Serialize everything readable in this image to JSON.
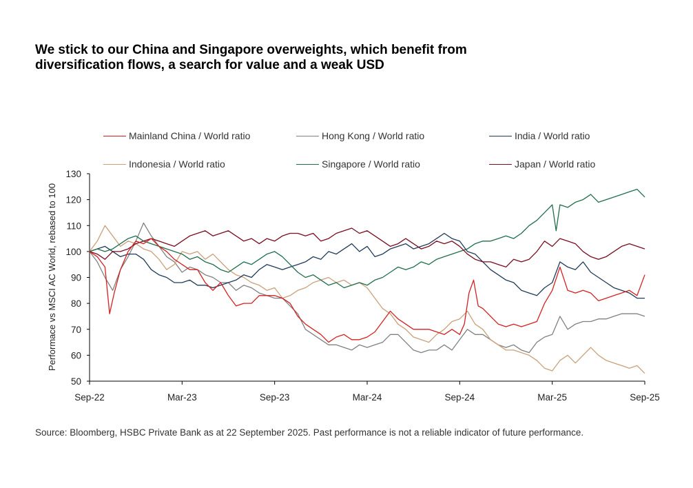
{
  "title_lines": [
    "We stick to our China and Singapore overweights, which benefit from",
    "diversification flows, a search for value and a weak USD"
  ],
  "source": "Source: Bloomberg, HSBC Private Bank as at 22 September 2025. Past performance is not a reliable indicator of future performance.",
  "chart_data": {
    "type": "line",
    "ylabel": "Performace vs MSCI AC World, rebased to 100",
    "ylim": [
      50,
      130
    ],
    "yticks": [
      50,
      60,
      70,
      80,
      90,
      100,
      110,
      120,
      130
    ],
    "xlim": [
      0,
      36
    ],
    "xticks": [
      {
        "x": 0,
        "label": "Sep-22"
      },
      {
        "x": 6,
        "label": "Mar-23"
      },
      {
        "x": 12,
        "label": "Sep-23"
      },
      {
        "x": 18,
        "label": "Mar-24"
      },
      {
        "x": 24,
        "label": "Sep-24"
      },
      {
        "x": 30,
        "label": "Mar-25"
      },
      {
        "x": 36,
        "label": "Sep-25"
      }
    ],
    "legend": "top, two rows",
    "grid": false,
    "series": [
      {
        "name": "Mainland China / World ratio",
        "color": "#d42020",
        "x": [
          0,
          0.5,
          1,
          1.3,
          1.6,
          2,
          2.5,
          3,
          3.5,
          4,
          4.5,
          5,
          5.5,
          6,
          6.5,
          7,
          7.5,
          8,
          8.5,
          9,
          9.5,
          10,
          10.5,
          11,
          11.5,
          12,
          12.5,
          13,
          13.5,
          14,
          14.5,
          15,
          15.5,
          16,
          16.5,
          17,
          17.5,
          18,
          18.5,
          19,
          19.5,
          20,
          20.5,
          21,
          21.5,
          22,
          22.5,
          23,
          23.5,
          24,
          24.3,
          24.6,
          24.9,
          25.2,
          25.5,
          26,
          26.5,
          27,
          27.5,
          28,
          28.5,
          29,
          29.5,
          30,
          30.5,
          31,
          31.5,
          32,
          32.5,
          33,
          33.5,
          34,
          34.5,
          35,
          35.5,
          36
        ],
        "values": [
          100,
          98,
          94,
          76,
          84,
          93,
          100,
          104,
          103,
          105,
          102,
          100,
          97,
          95,
          93,
          93,
          88,
          85,
          88,
          83,
          79,
          80,
          80,
          83,
          83,
          83,
          82,
          80,
          75,
          72,
          70,
          68,
          65,
          67,
          68,
          66,
          66,
          67,
          69,
          73,
          77,
          74,
          72,
          70,
          70,
          70,
          69,
          68,
          70,
          68,
          72,
          84,
          89,
          79,
          78,
          75,
          72,
          71,
          72,
          71,
          72,
          73,
          80,
          85,
          94,
          85,
          84,
          85,
          84,
          81,
          82,
          83,
          84,
          85,
          83,
          91
        ]
      },
      {
        "name": "Hong Kong / World ratio",
        "color": "#808080",
        "x": [
          0,
          0.5,
          1,
          1.5,
          2,
          2.5,
          3,
          3.5,
          4,
          4.5,
          5,
          5.5,
          6,
          6.5,
          7,
          7.5,
          8,
          8.5,
          9,
          9.5,
          10,
          10.5,
          11,
          11.5,
          12,
          12.5,
          13,
          13.5,
          14,
          14.5,
          15,
          15.5,
          16,
          16.5,
          17,
          17.5,
          18,
          18.5,
          19,
          19.5,
          20,
          20.5,
          21,
          21.5,
          22,
          22.5,
          23,
          23.5,
          24,
          24.5,
          25,
          25.5,
          26,
          26.5,
          27,
          27.5,
          28,
          28.5,
          29,
          29.5,
          30,
          30.5,
          31,
          31.5,
          32,
          32.5,
          33,
          33.5,
          34,
          34.5,
          35,
          35.5,
          36
        ],
        "values": [
          100,
          96,
          90,
          85,
          93,
          98,
          104,
          111,
          106,
          102,
          98,
          96,
          92,
          94,
          93,
          91,
          90,
          88,
          88,
          85,
          87,
          86,
          84,
          83,
          82,
          82,
          79,
          76,
          70,
          68,
          66,
          64,
          64,
          63,
          62,
          64,
          63,
          64,
          65,
          68,
          68,
          65,
          62,
          61,
          62,
          62,
          64,
          62,
          66,
          70,
          68,
          68,
          66,
          64,
          63,
          64,
          62,
          61,
          65,
          67,
          68,
          75,
          70,
          72,
          73,
          73,
          74,
          74,
          75,
          76,
          76,
          76,
          75
        ]
      },
      {
        "name": "India / World ratio",
        "color": "#1f3a5a",
        "x": [
          0,
          0.5,
          1,
          1.5,
          2,
          2.5,
          3,
          3.5,
          4,
          4.5,
          5,
          5.5,
          6,
          6.5,
          7,
          7.5,
          8,
          8.5,
          9,
          9.5,
          10,
          10.5,
          11,
          11.5,
          12,
          12.5,
          13,
          13.5,
          14,
          14.5,
          15,
          15.5,
          16,
          16.5,
          17,
          17.5,
          18,
          18.5,
          19,
          19.5,
          20,
          20.5,
          21,
          21.5,
          22,
          22.5,
          23,
          23.5,
          24,
          24.5,
          25,
          25.5,
          26,
          26.5,
          27,
          27.5,
          28,
          28.5,
          29,
          29.5,
          30,
          30.5,
          31,
          31.5,
          32,
          32.5,
          33,
          33.5,
          34,
          34.5,
          35,
          35.5,
          36
        ],
        "values": [
          100,
          101,
          102,
          100,
          98,
          99,
          99,
          97,
          93,
          91,
          90,
          88,
          88,
          89,
          87,
          87,
          86,
          87,
          88,
          89,
          91,
          90,
          93,
          95,
          94,
          93,
          94,
          95,
          96,
          98,
          97,
          100,
          99,
          101,
          103,
          100,
          102,
          98,
          99,
          101,
          102,
          103,
          101,
          102,
          103,
          105,
          107,
          105,
          104,
          100,
          99,
          96,
          93,
          91,
          89,
          88,
          85,
          84,
          83,
          86,
          88,
          96,
          94,
          93,
          96,
          92,
          90,
          88,
          86,
          85,
          84,
          82,
          82
        ]
      },
      {
        "name": "Indonesia / World ratio",
        "color": "#c9a07a",
        "x": [
          0,
          0.5,
          1,
          1.5,
          2,
          2.5,
          3,
          3.5,
          4,
          4.5,
          5,
          5.5,
          6,
          6.5,
          7,
          7.5,
          8,
          8.5,
          9,
          9.5,
          10,
          10.5,
          11,
          11.5,
          12,
          12.5,
          13,
          13.5,
          14,
          14.5,
          15,
          15.5,
          16,
          16.5,
          17,
          17.5,
          18,
          18.5,
          19,
          19.5,
          20,
          20.5,
          21,
          21.5,
          22,
          22.5,
          23,
          23.5,
          24,
          24.5,
          25,
          25.5,
          26,
          26.5,
          27,
          27.5,
          28,
          28.5,
          29,
          29.5,
          30,
          30.5,
          31,
          31.5,
          32,
          32.5,
          33,
          33.5,
          34,
          34.5,
          35,
          35.5,
          36
        ],
        "values": [
          100,
          104,
          110,
          106,
          102,
          104,
          103,
          101,
          100,
          97,
          93,
          95,
          100,
          99,
          100,
          97,
          99,
          96,
          93,
          91,
          90,
          88,
          87,
          85,
          86,
          82,
          83,
          85,
          86,
          88,
          89,
          90,
          88,
          89,
          87,
          88,
          86,
          82,
          78,
          76,
          72,
          70,
          67,
          66,
          65,
          68,
          70,
          73,
          74,
          77,
          72,
          70,
          66,
          64,
          62,
          62,
          61,
          60,
          58,
          55,
          54,
          58,
          60,
          57,
          60,
          63,
          60,
          58,
          57,
          56,
          55,
          56,
          53
        ]
      },
      {
        "name": "Singapore / World ratio",
        "color": "#1f6e4a",
        "x": [
          0,
          0.5,
          1,
          1.5,
          2,
          2.5,
          3,
          3.5,
          4,
          4.5,
          5,
          5.5,
          6,
          6.5,
          7,
          7.5,
          8,
          8.5,
          9,
          9.5,
          10,
          10.5,
          11,
          11.5,
          12,
          12.5,
          13,
          13.5,
          14,
          14.5,
          15,
          15.5,
          16,
          16.5,
          17,
          17.5,
          18,
          18.5,
          19,
          19.5,
          20,
          20.5,
          21,
          21.5,
          22,
          22.5,
          23,
          23.5,
          24,
          24.5,
          25,
          25.5,
          26,
          26.5,
          27,
          27.5,
          28,
          28.5,
          29,
          29.5,
          30,
          30.25,
          30.5,
          31,
          31.5,
          32,
          32.5,
          33,
          33.5,
          34,
          34.5,
          35,
          35.5,
          36
        ],
        "values": [
          100,
          101,
          100,
          101,
          103,
          105,
          106,
          104,
          103,
          102,
          101,
          100,
          99,
          97,
          98,
          96,
          95,
          93,
          92,
          94,
          96,
          95,
          97,
          99,
          100,
          98,
          95,
          92,
          90,
          91,
          89,
          87,
          88,
          86,
          87,
          88,
          87,
          89,
          90,
          92,
          94,
          93,
          94,
          96,
          95,
          97,
          98,
          99,
          100,
          101,
          103,
          104,
          104,
          105,
          106,
          105,
          107,
          110,
          112,
          115,
          118,
          108,
          118,
          117,
          119,
          120,
          122,
          119,
          120,
          121,
          122,
          123,
          124,
          121
        ]
      },
      {
        "name": "Japan / World ratio",
        "color": "#7a0c1e",
        "x": [
          0,
          0.5,
          1,
          1.5,
          2,
          2.5,
          3,
          3.5,
          4,
          4.5,
          5,
          5.5,
          6,
          6.5,
          7,
          7.5,
          8,
          8.5,
          9,
          9.5,
          10,
          10.5,
          11,
          11.5,
          12,
          12.5,
          13,
          13.5,
          14,
          14.5,
          15,
          15.5,
          16,
          16.5,
          17,
          17.5,
          18,
          18.5,
          19,
          19.5,
          20,
          20.5,
          21,
          21.5,
          22,
          22.5,
          23,
          23.5,
          24,
          24.5,
          25,
          25.5,
          26,
          26.5,
          27,
          27.5,
          28,
          28.5,
          29,
          29.5,
          30,
          30.5,
          31,
          31.5,
          32,
          32.5,
          33,
          33.5,
          34,
          34.5,
          35,
          35.5,
          36
        ],
        "values": [
          100,
          99,
          97,
          100,
          100,
          101,
          103,
          104,
          105,
          104,
          103,
          102,
          104,
          106,
          107,
          108,
          106,
          107,
          108,
          106,
          104,
          105,
          103,
          105,
          104,
          106,
          107,
          107,
          106,
          107,
          104,
          105,
          107,
          108,
          109,
          107,
          108,
          106,
          104,
          102,
          103,
          105,
          103,
          101,
          102,
          104,
          103,
          104,
          102,
          99,
          97,
          96,
          96,
          95,
          94,
          97,
          96,
          97,
          100,
          104,
          102,
          105,
          104,
          103,
          100,
          98,
          97,
          98,
          100,
          102,
          103,
          102,
          101
        ]
      }
    ]
  }
}
